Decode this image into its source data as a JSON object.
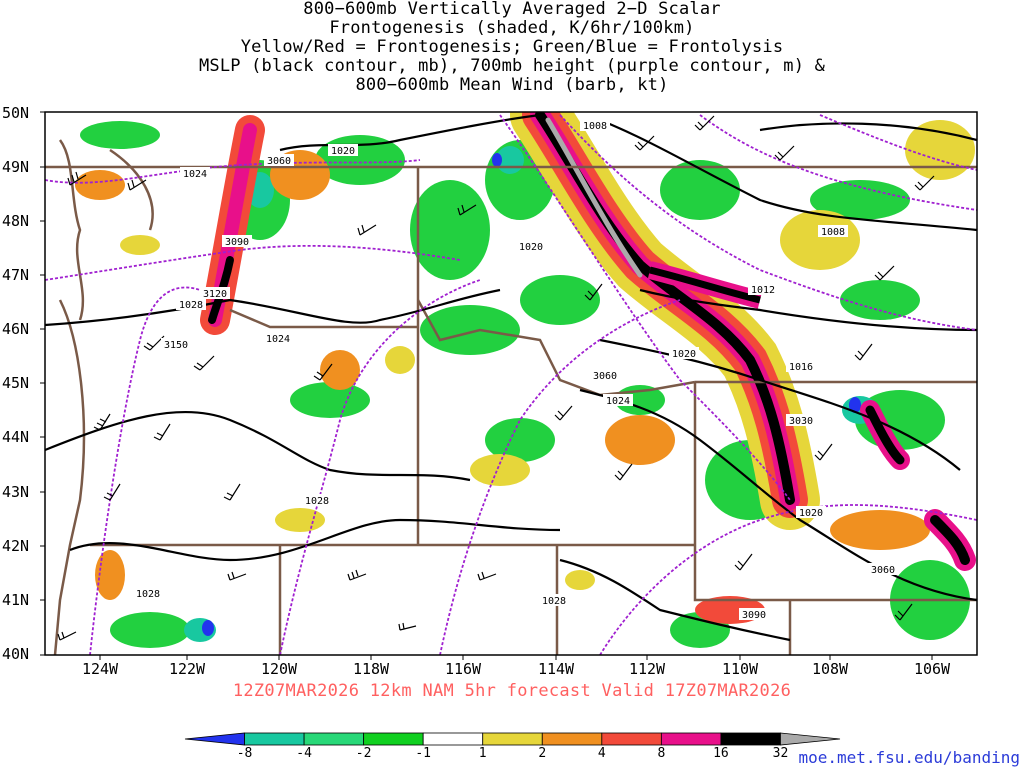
{
  "title_lines": [
    "800−600mb Vertically Averaged 2−D Scalar",
    "Frontogenesis (shaded, K/6hr/100km)",
    "Yellow/Red = Frontogenesis;  Green/Blue = Frontolysis",
    "MSLP (black contour, mb), 700mb height (purple contour, m) &",
    "800−600mb Mean Wind (barb, kt)"
  ],
  "lat_labels": [
    "50N",
    "49N",
    "48N",
    "47N",
    "46N",
    "45N",
    "44N",
    "43N",
    "42N",
    "41N",
    "40N"
  ],
  "lon_labels": [
    "124W",
    "122W",
    "120W",
    "118W",
    "116W",
    "114W",
    "112W",
    "110W",
    "108W",
    "106W"
  ],
  "contour_labels": {
    "mslp": [
      "1008",
      "1020",
      "1024",
      "1020",
      "1008",
      "1028",
      "1024",
      "1012",
      "1020",
      "1016",
      "1024",
      "1028",
      "1020",
      "1028",
      "1028"
    ],
    "height": [
      "3060",
      "3090",
      "3120",
      "3150",
      "3060",
      "3030",
      "3060",
      "3090"
    ]
  },
  "footer": "12Z07MAR2026 12km NAM 5hr forecast Valid 17Z07MAR2026",
  "colorbar": {
    "labels": [
      "-8",
      "-4",
      "-2",
      "-1",
      "1",
      "2",
      "4",
      "8",
      "16",
      "32"
    ],
    "colors": [
      "#2233ee",
      "#18c8a0",
      "#28d878",
      "#10d020",
      "#ffffff",
      "#e6d63a",
      "#f09020",
      "#f24a3a",
      "#e8108a",
      "#000000",
      "#aaaaaa"
    ]
  },
  "url": "moe.met.fsu.edu/banding"
}
